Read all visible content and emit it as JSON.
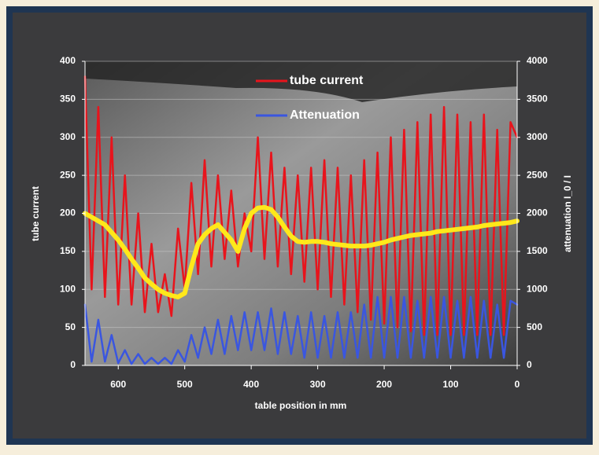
{
  "chart_data": {
    "type": "line",
    "x_label": "table position in mm",
    "y_label": "tube current",
    "y2_label": "attenuation I_0 / I",
    "x": [
      650,
      640,
      630,
      620,
      610,
      600,
      590,
      580,
      570,
      560,
      550,
      540,
      530,
      520,
      510,
      500,
      490,
      480,
      470,
      460,
      450,
      440,
      430,
      420,
      410,
      400,
      390,
      380,
      370,
      360,
      350,
      340,
      330,
      320,
      310,
      300,
      290,
      280,
      270,
      260,
      250,
      240,
      230,
      220,
      210,
      200,
      190,
      180,
      170,
      160,
      150,
      140,
      130,
      120,
      110,
      100,
      90,
      80,
      70,
      60,
      50,
      40,
      30,
      20,
      10,
      0
    ],
    "xlim": [
      650,
      0
    ],
    "xticks": [
      600,
      500,
      400,
      300,
      200,
      100,
      0
    ],
    "ylim": [
      0,
      400
    ],
    "yticks": [
      0,
      50,
      100,
      150,
      200,
      250,
      300,
      350,
      400
    ],
    "y2lim": [
      0,
      4000
    ],
    "y2ticks": [
      0,
      500,
      1000,
      1500,
      2000,
      2500,
      3000,
      3500,
      4000
    ],
    "grid": true,
    "legend": "top",
    "series": [
      {
        "name": "tube current",
        "color": "#e8141c",
        "axis": "y",
        "values": [
          380,
          100,
          340,
          90,
          300,
          80,
          250,
          80,
          200,
          70,
          160,
          70,
          120,
          65,
          180,
          100,
          240,
          120,
          270,
          130,
          250,
          140,
          230,
          130,
          200,
          150,
          300,
          140,
          280,
          130,
          260,
          120,
          250,
          110,
          260,
          100,
          270,
          90,
          260,
          80,
          250,
          70,
          270,
          60,
          280,
          55,
          300,
          50,
          310,
          45,
          320,
          40,
          330,
          40,
          340,
          40,
          330,
          40,
          320,
          40,
          330,
          40,
          310,
          40,
          320,
          300
        ]
      },
      {
        "name": "Attenuation",
        "color": "#3a56e0",
        "axis": "y2",
        "values": [
          800,
          50,
          600,
          50,
          400,
          30,
          200,
          20,
          150,
          20,
          100,
          20,
          100,
          20,
          200,
          50,
          400,
          100,
          500,
          150,
          600,
          150,
          650,
          200,
          700,
          200,
          700,
          200,
          750,
          150,
          700,
          150,
          650,
          100,
          700,
          100,
          650,
          100,
          700,
          100,
          700,
          100,
          800,
          100,
          900,
          100,
          900,
          100,
          900,
          100,
          850,
          100,
          900,
          100,
          900,
          100,
          850,
          100,
          900,
          100,
          850,
          100,
          800,
          100,
          850,
          800
        ]
      },
      {
        "color": "#ffe81a",
        "axis": "y",
        "values": [
          200,
          195,
          190,
          185,
          175,
          165,
          153,
          140,
          128,
          115,
          107,
          100,
          95,
          92,
          90,
          95,
          130,
          160,
          172,
          180,
          185,
          175,
          165,
          150,
          180,
          200,
          207,
          208,
          205,
          195,
          182,
          170,
          163,
          162,
          163,
          163,
          162,
          160,
          159,
          158,
          157,
          157,
          157,
          158,
          160,
          162,
          165,
          167,
          169,
          171,
          172,
          173,
          174,
          176,
          177,
          178,
          179,
          180,
          181,
          182,
          184,
          185,
          186,
          187,
          188,
          190
        ]
      }
    ]
  }
}
